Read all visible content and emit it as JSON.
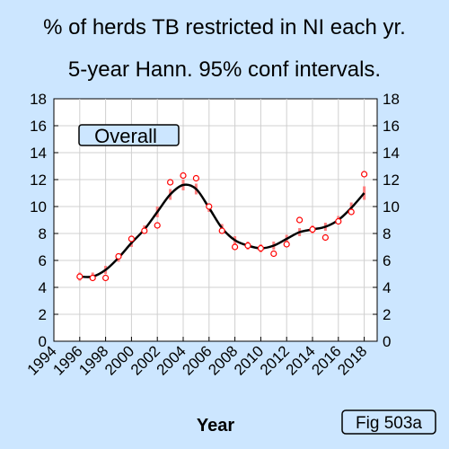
{
  "chart_data": {
    "type": "line",
    "title": "% of herds TB restricted in NI each yr.",
    "subtitle": "5-year Hann. 95% conf intervals.",
    "xlabel": "Year",
    "ylabel": "",
    "xlim": [
      1994,
      2019
    ],
    "ylim": [
      0,
      18
    ],
    "x_ticks": [
      "1994",
      "1996",
      "1998",
      "2000",
      "2002",
      "2004",
      "2006",
      "2008",
      "2010",
      "2012",
      "2014",
      "2016",
      "2018"
    ],
    "y_ticks": [
      "0",
      "2",
      "4",
      "6",
      "8",
      "10",
      "12",
      "14",
      "16",
      "18"
    ],
    "legend_label": "Overall",
    "fig_label": "Fig 503a",
    "grid": true,
    "colors": {
      "background": "#cce6ff",
      "plot_bg": "#ffffff",
      "line": "#000000",
      "ci": "#ff8080",
      "points": "#ff0000"
    },
    "series": [
      {
        "kind": "observed",
        "x": [
          1996,
          1997,
          1998,
          1999,
          2000,
          2001,
          2002,
          2003,
          2004,
          2005,
          2006,
          2007,
          2008,
          2009,
          2010,
          2011,
          2012,
          2013,
          2014,
          2015,
          2016,
          2017,
          2018
        ],
        "y": [
          4.8,
          4.7,
          4.7,
          6.3,
          7.6,
          8.2,
          8.6,
          11.8,
          12.3,
          12.1,
          10.0,
          8.2,
          7.0,
          7.1,
          6.9,
          6.5,
          7.2,
          9.0,
          8.3,
          7.7,
          8.9,
          9.6,
          12.4
        ]
      },
      {
        "kind": "smoothed",
        "x": [
          1996,
          1997,
          1998,
          1999,
          2000,
          2001,
          2002,
          2003,
          2004,
          2005,
          2006,
          2007,
          2008,
          2009,
          2010,
          2011,
          2012,
          2013,
          2014,
          2015,
          2016,
          2017,
          2018
        ],
        "y": [
          4.8,
          4.8,
          5.3,
          6.2,
          7.3,
          8.3,
          9.6,
          10.9,
          11.6,
          11.3,
          9.9,
          8.4,
          7.5,
          7.1,
          6.9,
          7.1,
          7.6,
          8.1,
          8.3,
          8.5,
          9.0,
          9.9,
          11.0
        ],
        "ci_low": [
          4.5,
          4.5,
          5.0,
          5.9,
          7.0,
          8.0,
          9.2,
          10.5,
          11.2,
          10.9,
          9.6,
          8.1,
          7.2,
          6.8,
          6.6,
          6.8,
          7.3,
          7.8,
          8.0,
          8.2,
          8.7,
          9.5,
          10.5
        ],
        "ci_high": [
          5.1,
          5.1,
          5.6,
          6.5,
          7.6,
          8.6,
          10.0,
          11.3,
          12.0,
          11.7,
          10.2,
          8.7,
          7.8,
          7.4,
          7.2,
          7.4,
          7.9,
          8.4,
          8.6,
          8.8,
          9.3,
          10.3,
          11.5
        ]
      }
    ]
  }
}
